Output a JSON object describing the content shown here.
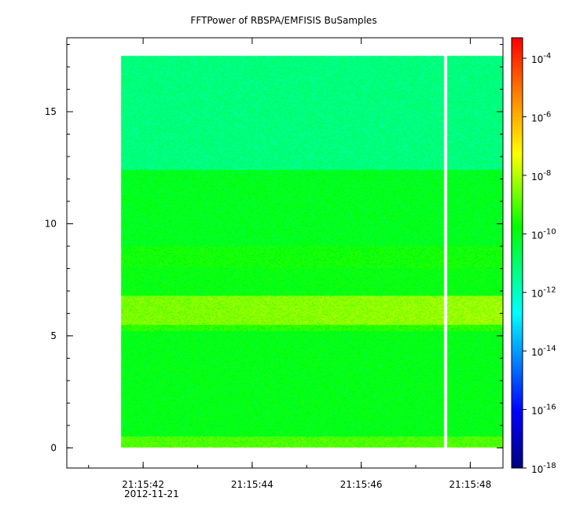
{
  "chart_data": {
    "type": "heatmap",
    "title": "FFTPower of RBSPA/EMFISIS  BuSamples",
    "xlabel": "",
    "ylabel": "",
    "x_ticks": [
      {
        "value": 42,
        "label": "21:15:42"
      },
      {
        "value": 44,
        "label": "21:15:44"
      },
      {
        "value": 46,
        "label": "21:15:46"
      },
      {
        "value": 48,
        "label": "21:15:48"
      }
    ],
    "x_date_label": "2012-11-21",
    "x_range": [
      40.6,
      48.6
    ],
    "x_minor_step": 1,
    "y_ticks": [
      {
        "value": 0,
        "label": "0"
      },
      {
        "value": 5,
        "label": "5"
      },
      {
        "value": 10,
        "label": "10"
      },
      {
        "value": 15,
        "label": "15"
      }
    ],
    "ylim": [
      -0.9,
      18.3
    ],
    "y_minor_step": 1,
    "data_extent": {
      "x": [
        41.6,
        48.6
      ],
      "y": [
        0,
        17.5
      ]
    },
    "data_gap_x": [
      47.52,
      47.58
    ],
    "colorbar": {
      "scale": "log",
      "range_exponent": [
        -18,
        -3.3
      ],
      "ticks": [
        {
          "exp": -4,
          "label": "-4"
        },
        {
          "exp": -6,
          "label": "-6"
        },
        {
          "exp": -8,
          "label": "-8"
        },
        {
          "exp": -10,
          "label": "-10"
        },
        {
          "exp": -12,
          "label": "-12"
        },
        {
          "exp": -14,
          "label": "-14"
        },
        {
          "exp": -16,
          "label": "-16"
        },
        {
          "exp": -18,
          "label": "-18"
        }
      ]
    },
    "spectral_bands": [
      {
        "y_from": 0.0,
        "y_to": 0.5,
        "log_power": -9.0
      },
      {
        "y_from": 0.5,
        "y_to": 5.2,
        "log_power": -10.0
      },
      {
        "y_from": 5.2,
        "y_to": 5.5,
        "log_power": -9.4
      },
      {
        "y_from": 5.5,
        "y_to": 6.8,
        "log_power": -8.6
      },
      {
        "y_from": 6.8,
        "y_to": 8.0,
        "log_power": -9.9
      },
      {
        "y_from": 8.0,
        "y_to": 9.0,
        "log_power": -9.7
      },
      {
        "y_from": 9.0,
        "y_to": 12.4,
        "log_power": -10.1
      },
      {
        "y_from": 12.4,
        "y_to": 17.5,
        "log_power": -11.2
      }
    ]
  }
}
